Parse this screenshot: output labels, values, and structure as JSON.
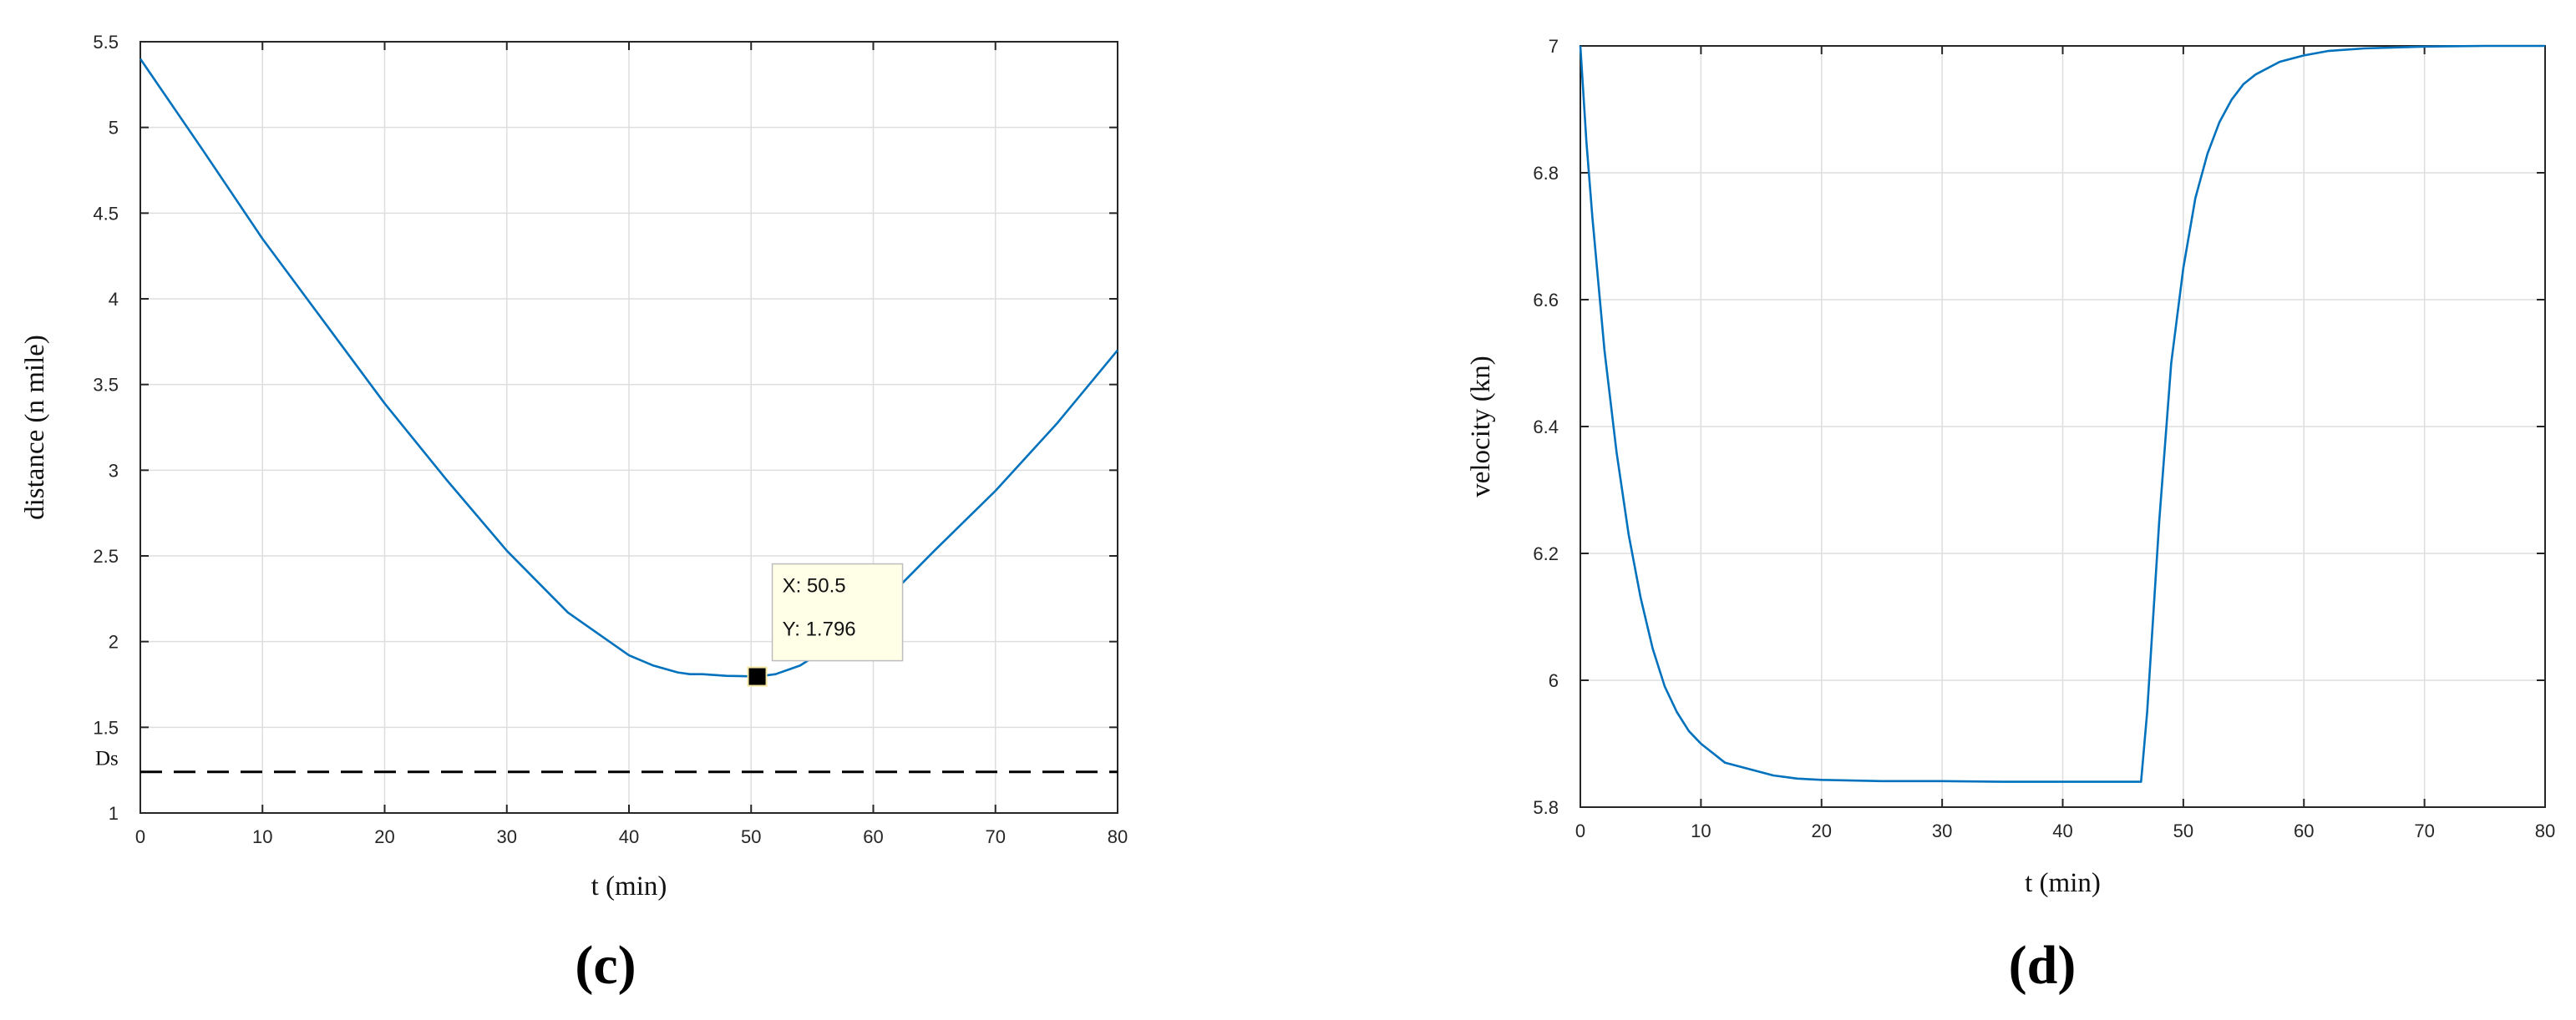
{
  "chart_data": [
    {
      "type": "line",
      "panel_label": "(c)",
      "xlabel": "t (min)",
      "ylabel": "distance (n mile)",
      "xlim": [
        0,
        80
      ],
      "ylim": [
        1,
        5.5
      ],
      "xticks": [
        0,
        10,
        20,
        30,
        40,
        50,
        60,
        70,
        80
      ],
      "yticks": [
        1,
        1.5,
        2,
        2.5,
        3,
        3.5,
        4,
        4.5,
        5,
        5.5
      ],
      "grid": true,
      "color": "#0072bd",
      "series": [
        {
          "x": [
            0,
            5,
            10,
            15,
            20,
            25,
            30,
            35,
            40,
            42,
            44,
            45,
            46,
            48,
            50,
            50.5,
            52,
            54,
            56,
            58,
            60,
            65,
            70,
            75,
            80
          ],
          "y": [
            5.4,
            4.88,
            4.35,
            3.87,
            3.39,
            2.95,
            2.53,
            2.17,
            1.92,
            1.86,
            1.82,
            1.81,
            1.81,
            1.8,
            1.797,
            1.796,
            1.81,
            1.86,
            1.95,
            2.05,
            2.17,
            2.53,
            2.88,
            3.27,
            3.7
          ]
        }
      ],
      "reference_line": {
        "label": "Ds",
        "y": 1.24,
        "style": "dashed"
      },
      "datatip": {
        "x": 50.5,
        "y": 1.796,
        "x_text": "X: 50.5",
        "y_text": "Y: 1.796"
      }
    },
    {
      "type": "line",
      "panel_label": "(d)",
      "xlabel": "t (min)",
      "ylabel": "velocity (kn)",
      "xlim": [
        0,
        80
      ],
      "ylim": [
        5.8,
        7
      ],
      "xticks": [
        0,
        10,
        20,
        30,
        40,
        50,
        60,
        70,
        80
      ],
      "yticks": [
        5.8,
        6,
        6.2,
        6.4,
        6.6,
        6.8,
        7
      ],
      "grid": true,
      "color": "#0072bd",
      "series": [
        {
          "x": [
            0,
            0.5,
            1,
            2,
            3,
            4,
            5,
            6,
            7,
            8,
            9,
            10,
            12,
            14,
            16,
            18,
            20,
            25,
            30,
            35,
            40,
            46.5,
            47,
            48,
            49,
            50,
            51,
            52,
            53,
            54,
            55,
            56,
            58,
            60,
            62,
            65,
            70,
            75,
            80
          ],
          "y": [
            7,
            6.85,
            6.73,
            6.52,
            6.36,
            6.23,
            6.13,
            6.05,
            5.99,
            5.95,
            5.92,
            5.9,
            5.87,
            5.86,
            5.85,
            5.845,
            5.843,
            5.841,
            5.841,
            5.84,
            5.84,
            5.84,
            5.95,
            6.25,
            6.5,
            6.65,
            6.76,
            6.83,
            6.88,
            6.915,
            6.94,
            6.955,
            6.975,
            6.985,
            6.992,
            6.996,
            6.999,
            7,
            7
          ]
        }
      ]
    }
  ]
}
